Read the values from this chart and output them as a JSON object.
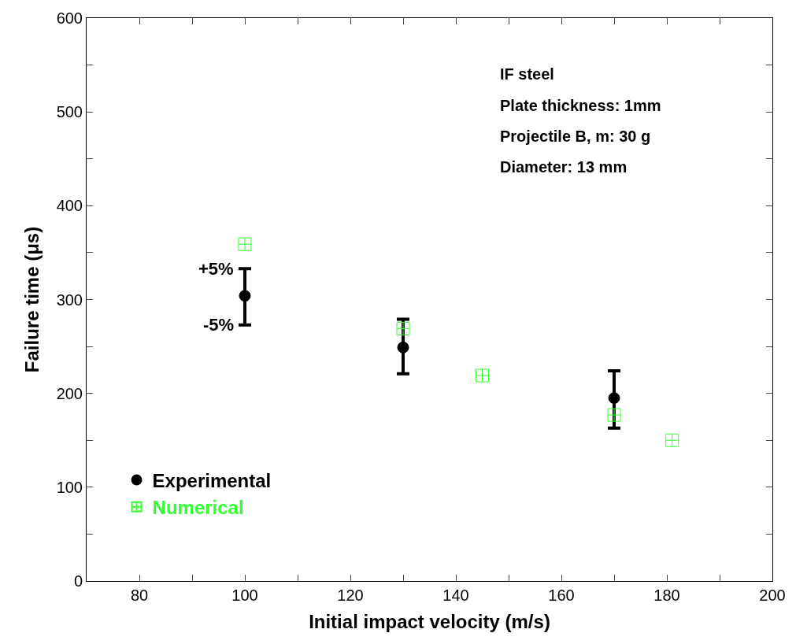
{
  "chart_data": {
    "type": "scatter",
    "xlabel": "Initial impact velocity (m/s)",
    "ylabel": "Failure time (μs)",
    "xlim": [
      70,
      200
    ],
    "ylim": [
      0,
      600
    ],
    "xticks": [
      {
        "value": 70,
        "label": null
      },
      80,
      {
        "value": 90,
        "label": null
      },
      100,
      {
        "value": 110,
        "label": null
      },
      120,
      {
        "value": 130,
        "label": null
      },
      140,
      {
        "value": 150,
        "label": null
      },
      160,
      {
        "value": 170,
        "label": null
      },
      180,
      {
        "value": 190,
        "label": null
      },
      200
    ],
    "yticks": [
      0,
      {
        "value": 50,
        "label": null
      },
      100,
      {
        "value": 150,
        "label": null
      },
      200,
      {
        "value": 250,
        "label": null
      },
      300,
      {
        "value": 350,
        "label": null
      },
      400,
      {
        "value": 450,
        "label": null
      },
      500,
      {
        "value": 550,
        "label": null
      },
      600
    ],
    "legend": "bottom left",
    "series": [
      {
        "name": "Experimental",
        "color": "#000000",
        "marker": "circle",
        "x": [
          100,
          130,
          170
        ],
        "values": [
          304,
          249,
          195
        ],
        "errors": [
          [
            273,
            333
          ],
          [
            221,
            279
          ],
          [
            163,
            224
          ]
        ]
      },
      {
        "name": "Numerical",
        "color": "#33ff33",
        "marker": "cross",
        "x": [
          100,
          130,
          145,
          170,
          181
        ],
        "values": [
          359,
          269,
          219,
          177,
          150
        ]
      }
    ],
    "annotations": [
      "IF steel",
      "Plate thickness: 1mm",
      "Projectile B, m: 30 g",
      "Diameter: 13 mm",
      {
        "text": "+5%",
        "x": 100,
        "y": 333
      },
      {
        "text": "-5%",
        "x": 100,
        "y": 273
      }
    ]
  }
}
